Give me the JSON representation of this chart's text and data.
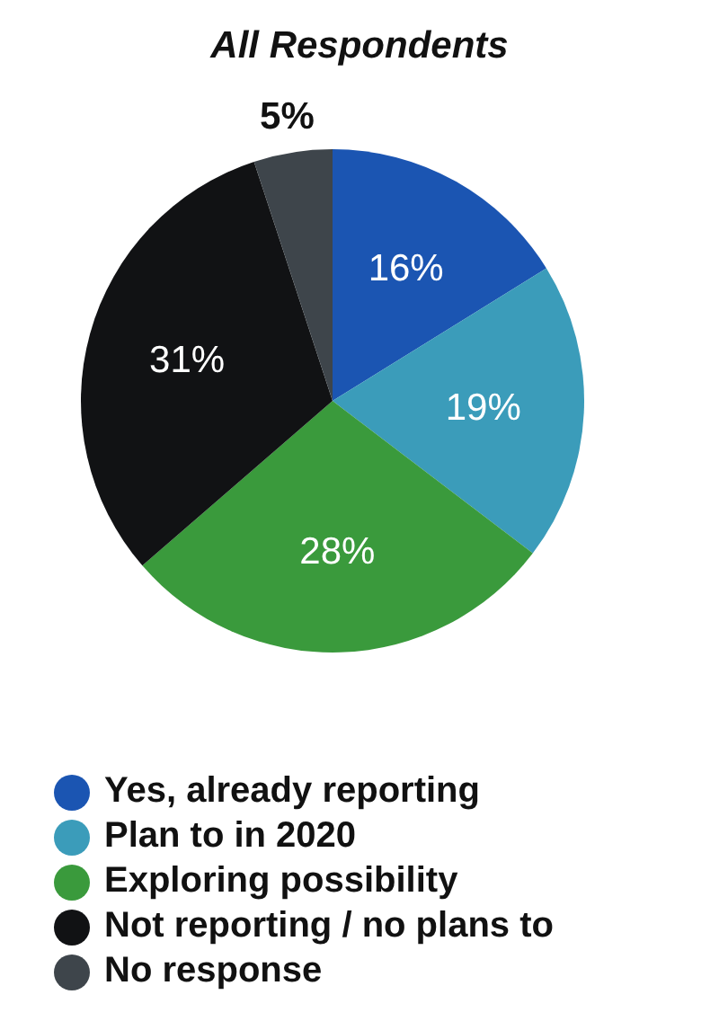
{
  "chart_data": {
    "type": "pie",
    "title": "All Respondents",
    "categories": [
      "Yes, already reporting",
      "Plan to in 2020",
      "Exploring possibility",
      "Not reporting / no plans to",
      "No response"
    ],
    "values": [
      16,
      19,
      28,
      31,
      5
    ],
    "colors": [
      "#1b55b2",
      "#3b9cba",
      "#3a9a3c",
      "#111214",
      "#3e454b"
    ],
    "value_labels": [
      "16%",
      "19%",
      "28%",
      "31%",
      "5%"
    ],
    "legend": "bottom left"
  }
}
